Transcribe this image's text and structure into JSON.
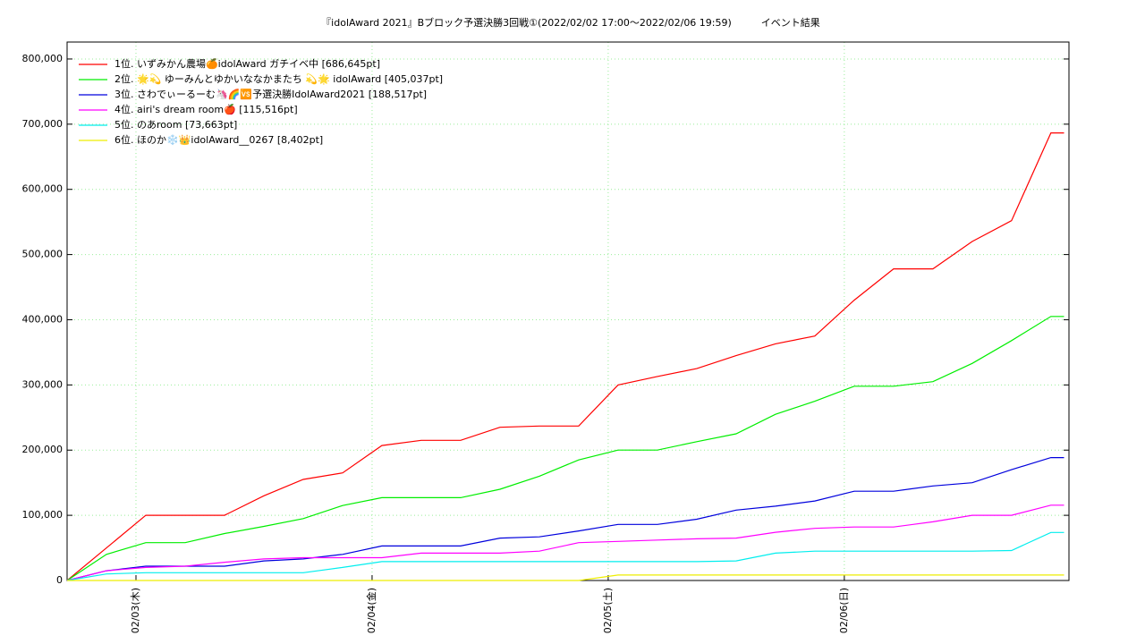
{
  "chart_data": {
    "type": "line",
    "title": "『idolAward 2021』Bブロック予選決勝3回戦①(2022/02/02 17:00～2022/02/06 19:59)　　　イベント結果",
    "x": [
      "2022-02-02 17:00",
      "2022-02-02 21:00",
      "2022-02-03 01:00",
      "2022-02-03 05:00",
      "2022-02-03 09:00",
      "2022-02-03 13:00",
      "2022-02-03 17:00",
      "2022-02-03 21:00",
      "2022-02-04 01:00",
      "2022-02-04 05:00",
      "2022-02-04 09:00",
      "2022-02-04 13:00",
      "2022-02-04 17:00",
      "2022-02-04 21:00",
      "2022-02-05 01:00",
      "2022-02-05 05:00",
      "2022-02-05 09:00",
      "2022-02-05 13:00",
      "2022-02-05 17:00",
      "2022-02-05 21:00",
      "2022-02-06 01:00",
      "2022-02-06 05:00",
      "2022-02-06 09:00",
      "2022-02-06 13:00",
      "2022-02-06 17:00",
      "2022-02-06 21:00",
      "2022-02-06 22:20"
    ],
    "series": [
      {
        "name": "1位. いずみかん農場🍊idolAward ガチイベ中 [686,645pt]",
        "color": "#ff0000",
        "values": [
          0,
          50000,
          100000,
          100000,
          100000,
          130000,
          155000,
          165000,
          207000,
          215000,
          215000,
          235000,
          237000,
          237000,
          300000,
          313000,
          325000,
          345000,
          363000,
          375000,
          430000,
          478000,
          478000,
          520000,
          552000,
          686645,
          686645
        ]
      },
      {
        "name": "2位. 🌟💫 ゆーみんとゆかいななかまたち 💫🌟 idolAward [405,037pt]",
        "color": "#00ee00",
        "values": [
          0,
          40000,
          58000,
          58000,
          72000,
          83000,
          95000,
          115000,
          127000,
          127000,
          127000,
          140000,
          160000,
          185000,
          200000,
          200000,
          213000,
          225000,
          255000,
          275000,
          298000,
          298000,
          305000,
          333000,
          368000,
          405037,
          405037
        ]
      },
      {
        "name": "3位. さわでぃーるーむ🦄🌈🆚予選決勝IdolAward2021 [188,517pt]",
        "color": "#0000dd",
        "values": [
          0,
          15000,
          22000,
          22000,
          22000,
          30000,
          33000,
          40000,
          53000,
          53000,
          53000,
          65000,
          67000,
          76000,
          86000,
          86000,
          94000,
          108000,
          114000,
          122000,
          137000,
          137000,
          145000,
          150000,
          170000,
          188517,
          188517
        ]
      },
      {
        "name": "4位. airi's dream room🍎 [115,516pt]",
        "color": "#ff00ff",
        "values": [
          0,
          15000,
          20000,
          22000,
          28000,
          33000,
          35000,
          35000,
          35000,
          42000,
          42000,
          42000,
          45000,
          58000,
          60000,
          62000,
          64000,
          65000,
          74000,
          80000,
          82000,
          82000,
          90000,
          100000,
          100000,
          115516,
          115516
        ]
      },
      {
        "name": "5位. のあroom [73,663pt]",
        "color": "#00eeee",
        "values": [
          0,
          10000,
          12000,
          12000,
          12000,
          12000,
          12000,
          20000,
          29000,
          29000,
          29000,
          29000,
          29000,
          29000,
          29000,
          29000,
          29000,
          30000,
          42000,
          45000,
          45000,
          45000,
          45000,
          45000,
          46000,
          73663,
          73663
        ]
      },
      {
        "name": "6位. ほのか❄️👑idolAward__0267 [8,402pt]",
        "color": "#eeee00",
        "values": [
          0,
          0,
          0,
          0,
          0,
          0,
          0,
          0,
          0,
          0,
          0,
          0,
          0,
          0,
          8402,
          8402,
          8402,
          8402,
          8402,
          8402,
          8402,
          8402,
          8402,
          8402,
          8402,
          8402,
          8402
        ]
      }
    ],
    "xlim": [
      "2022-02-02 17:00",
      "2022-02-06 22:50"
    ],
    "xticks": [
      {
        "value": "2022-02-03 00:00",
        "label": "02/03(木)"
      },
      {
        "value": "2022-02-04 00:00",
        "label": "02/04(金)"
      },
      {
        "value": "2022-02-05 00:00",
        "label": "02/05(土)"
      },
      {
        "value": "2022-02-06 00:00",
        "label": "02/06(日)"
      }
    ],
    "ylim": [
      0,
      826000
    ],
    "yticks": [
      0,
      {
        "value": 100000,
        "label": "100,000"
      },
      {
        "value": 200000,
        "label": "200,000"
      },
      {
        "value": 300000,
        "label": "300,000"
      },
      {
        "value": 400000,
        "label": "400,000"
      },
      {
        "value": 500000,
        "label": "500,000"
      },
      {
        "value": 600000,
        "label": "600,000"
      },
      {
        "value": 700000,
        "label": "700,000"
      },
      {
        "value": 800000,
        "label": "800,000"
      }
    ],
    "grid": true,
    "legend": "upper left"
  }
}
